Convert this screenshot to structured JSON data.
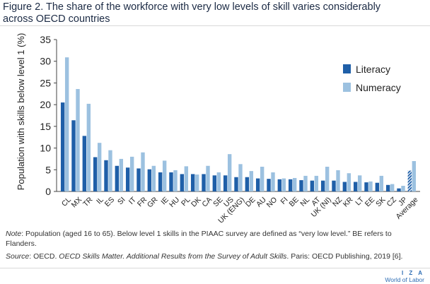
{
  "figure": {
    "title_line1": "Figure 2. The share of the workforce with very low levels of skill varies considerably",
    "title_line2": "across OECD countries"
  },
  "note": {
    "label": "Note",
    "text": ": Population (aged 16 to 65). Below level 1 skills in the PIAAC survey are defined as “very low level.” BE refers to Flanders."
  },
  "source": {
    "label": "Source",
    "text_before": ": OECD. ",
    "title": "OECD Skills Matter. Additional Results from the Survey of Adult Skills",
    "text_after": ". Paris: OECD Publishing, 2019 [6]."
  },
  "brand": {
    "top": "I Z A",
    "bottom": "World of Labor"
  },
  "colors": {
    "literacy": "#1f5fa8",
    "numeracy": "#9cc1e0",
    "axis": "#444444"
  },
  "chart_data": {
    "type": "bar",
    "ylabel": "Population with skills below level 1 (%)",
    "ylim": [
      0,
      35
    ],
    "yticks": [
      0,
      5,
      10,
      15,
      20,
      25,
      30,
      35
    ],
    "legend_position": "top-right",
    "categories": [
      "CL",
      "MX",
      "TR",
      "IL",
      "ES",
      "SI",
      "IT",
      "FR",
      "GR",
      "IE",
      "HU",
      "PL",
      "DK",
      "CA",
      "SE",
      "US",
      "UK (ENG)",
      "DE",
      "AU",
      "NO",
      "FI",
      "BE",
      "NL",
      "AT",
      "UK (NI)",
      "NZ",
      "KR",
      "LT",
      "EE",
      "SK",
      "CZ",
      "JP",
      "Average"
    ],
    "series": [
      {
        "name": "Literacy",
        "values": [
          20.5,
          16.4,
          12.8,
          7.9,
          7.2,
          5.9,
          5.5,
          5.3,
          5.1,
          4.4,
          4.4,
          4.0,
          4.0,
          4.0,
          3.7,
          3.7,
          3.3,
          3.3,
          3.0,
          2.9,
          2.8,
          2.8,
          2.6,
          2.5,
          2.5,
          2.5,
          2.2,
          2.2,
          2.1,
          2.0,
          1.5,
          0.7,
          4.8
        ]
      },
      {
        "name": "Numeracy",
        "values": [
          30.9,
          23.6,
          20.2,
          11.2,
          9.5,
          7.5,
          8.0,
          9.0,
          5.9,
          7.1,
          4.9,
          5.8,
          3.9,
          5.9,
          4.4,
          8.6,
          6.3,
          4.7,
          5.7,
          4.4,
          3.0,
          3.1,
          3.6,
          3.6,
          5.7,
          4.9,
          4.2,
          3.7,
          2.3,
          3.6,
          1.7,
          1.3,
          7.0
        ]
      }
    ]
  }
}
